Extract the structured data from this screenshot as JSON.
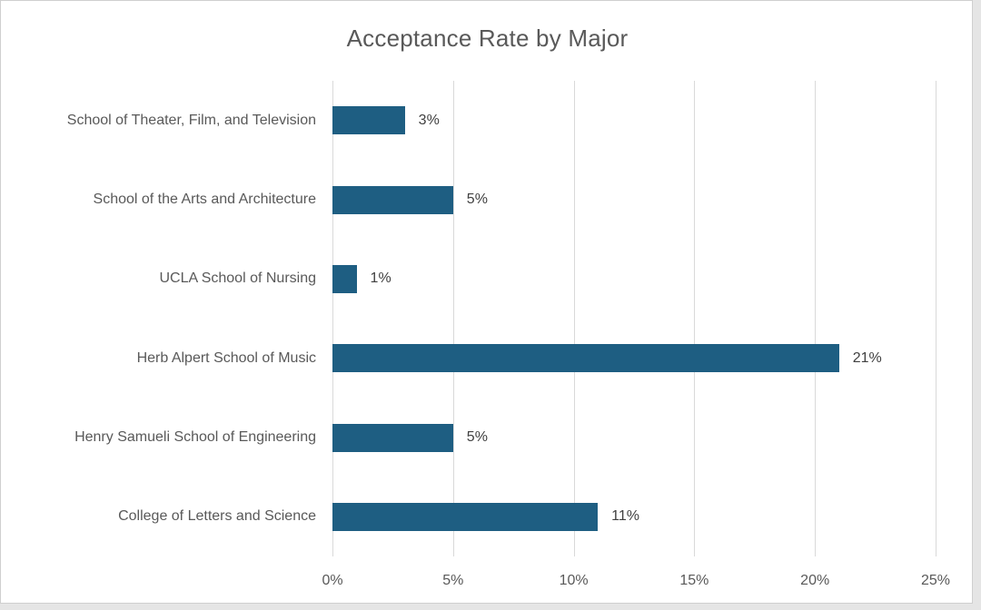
{
  "chart_data": {
    "type": "bar",
    "orientation": "horizontal",
    "title": "Acceptance Rate by Major",
    "categories": [
      "School of Theater, Film, and Television",
      "School of the Arts and Architecture",
      "UCLA School of Nursing",
      "Herb Alpert School of Music",
      "Henry Samueli School of Engineering",
      "College of Letters and Science"
    ],
    "values": [
      3,
      5,
      1,
      21,
      5,
      11
    ],
    "value_labels": [
      "3%",
      "5%",
      "1%",
      "21%",
      "5%",
      "11%"
    ],
    "xlabel": "",
    "ylabel": "",
    "xlim": [
      0,
      25
    ],
    "ticks": [
      0,
      5,
      10,
      15,
      20,
      25
    ],
    "tick_labels": [
      "0%",
      "5%",
      "10%",
      "15%",
      "20%",
      "25%"
    ],
    "grid": "vertical-only",
    "legend": "none",
    "colors": {
      "bar": "#1E5E82",
      "gridline": "#D9D9D9",
      "axis_text": "#595959",
      "title_text": "#595959",
      "value_text": "#404040",
      "chart_border": "#CFCFCF",
      "background": "#FFFFFF"
    }
  }
}
